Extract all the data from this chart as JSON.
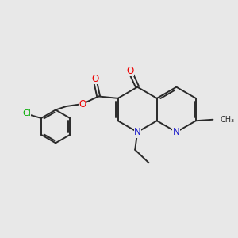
{
  "bg_color": "#e8e8e8",
  "bond_color": "#2a2a2a",
  "bond_width": 1.4,
  "atom_colors": {
    "O": "#ee0000",
    "N": "#2222cc",
    "Cl": "#00aa00",
    "C": "#2a2a2a"
  },
  "font_size": 8.5,
  "fig_size": [
    3.0,
    3.0
  ],
  "dpi": 100
}
